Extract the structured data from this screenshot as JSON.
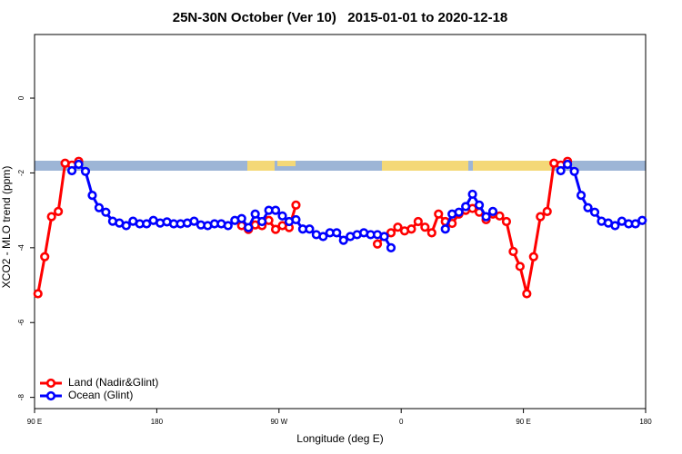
{
  "chart_data": {
    "type": "line",
    "title": "25N-30N October (Ver 10)   2015-01-01 to 2020-12-18",
    "x_label": "Longitude (deg E)",
    "y_label": "XCO2 - MLO trend (ppm)",
    "xlim": [
      90,
      540
    ],
    "ylim": [
      -8.3,
      1.7
    ],
    "xticks": [
      {
        "value": 90,
        "label": "90 E"
      },
      180,
      {
        "value": 270,
        "label": "90 W"
      },
      {
        "value": 360,
        "label": "0"
      },
      {
        "value": 450,
        "label": "90 E"
      },
      {
        "value": 540,
        "label": "180"
      }
    ],
    "yticks": [
      0,
      -2,
      -4,
      -6,
      -8
    ],
    "legend": "bottomleft",
    "x": [
      92.5,
      97.5,
      102.5,
      107.5,
      112.5,
      117.5,
      122.5,
      127.5,
      132.5,
      137.5,
      142.5,
      147.5,
      152.5,
      157.5,
      162.5,
      167.5,
      172.5,
      177.5,
      182.5,
      187.5,
      192.5,
      197.5,
      202.5,
      207.5,
      212.5,
      217.5,
      222.5,
      227.5,
      232.5,
      237.5,
      242.5,
      247.5,
      252.5,
      257.5,
      262.5,
      267.5,
      272.5,
      277.5,
      282.5,
      287.5,
      292.5,
      297.5,
      302.5,
      307.5,
      312.5,
      317.5,
      322.5,
      327.5,
      332.5,
      337.5,
      342.5,
      347.5,
      352.5,
      357.5,
      362.5,
      367.5,
      372.5,
      377.5,
      382.5,
      387.5,
      392.5,
      397.5,
      402.5,
      407.5,
      412.5,
      417.5,
      422.5,
      427.5,
      432.5,
      437.5,
      442.5,
      447.5,
      452.5,
      457.5,
      462.5,
      467.5,
      472.5,
      477.5,
      482.5,
      487.5,
      492.5,
      497.5,
      502.5,
      507.5,
      512.5,
      517.5,
      522.5,
      527.5,
      532.5,
      537.5
    ],
    "series": [
      {
        "name": "Land (Nadir&Glint)",
        "color": "#ff0000",
        "values": [
          -5.23,
          -4.24,
          -3.17,
          -3.03,
          -1.74,
          -1.79,
          -1.69,
          null,
          null,
          null,
          null,
          null,
          null,
          null,
          null,
          null,
          null,
          null,
          null,
          null,
          null,
          null,
          null,
          null,
          null,
          null,
          null,
          null,
          null,
          null,
          -3.41,
          -3.51,
          -3.39,
          -3.41,
          -3.27,
          -3.51,
          -3.41,
          -3.46,
          -2.86,
          null,
          null,
          null,
          null,
          null,
          null,
          null,
          null,
          null,
          null,
          null,
          -3.9,
          -3.7,
          -3.6,
          -3.45,
          -3.55,
          -3.5,
          -3.3,
          -3.45,
          -3.6,
          -3.1,
          -3.3,
          -3.35,
          -3.1,
          -3.0,
          -2.95,
          -3.05,
          -3.25,
          -3.1,
          -3.15,
          -3.3,
          -4.1,
          -4.5,
          -5.23,
          -4.24,
          -3.17,
          -3.03,
          -1.74,
          -1.79,
          -1.69,
          null,
          null,
          null,
          null,
          null,
          null,
          null,
          null,
          null,
          null,
          null
        ]
      },
      {
        "name": "Ocean (Glint)",
        "color": "#0000ff",
        "values": [
          null,
          null,
          null,
          null,
          null,
          -1.94,
          -1.77,
          -1.96,
          -2.6,
          -2.93,
          -3.05,
          -3.29,
          -3.34,
          -3.41,
          -3.29,
          -3.36,
          -3.36,
          -3.27,
          -3.34,
          -3.31,
          -3.36,
          -3.36,
          -3.34,
          -3.29,
          -3.39,
          -3.41,
          -3.36,
          -3.36,
          -3.41,
          -3.27,
          -3.22,
          -3.46,
          -3.1,
          -3.3,
          -3.0,
          -3.0,
          -3.15,
          -3.3,
          -3.25,
          -3.5,
          -3.5,
          -3.65,
          -3.7,
          -3.6,
          -3.6,
          -3.8,
          -3.7,
          -3.65,
          -3.6,
          -3.65,
          -3.65,
          -3.7,
          -4.0,
          null,
          null,
          null,
          null,
          null,
          null,
          null,
          -3.5,
          -3.1,
          -3.05,
          -2.9,
          -2.57,
          -2.86,
          -3.17,
          -3.03,
          null,
          null,
          null,
          null,
          null,
          null,
          null,
          null,
          null,
          -1.94,
          -1.77,
          -1.96,
          -2.6,
          -2.93,
          -3.05,
          -3.29,
          -3.34,
          -3.41,
          -3.29,
          -3.36,
          -3.36,
          -3.27
        ]
      }
    ]
  }
}
